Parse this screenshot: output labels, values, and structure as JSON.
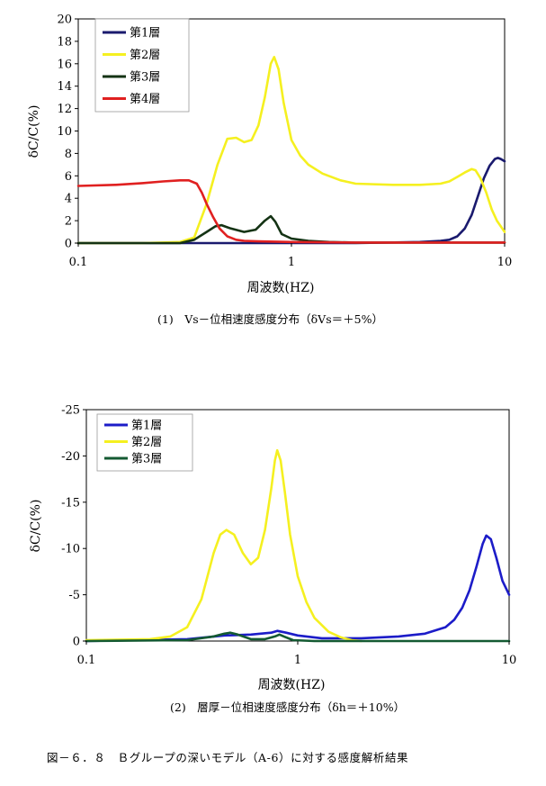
{
  "chart_data": [
    {
      "type": "line",
      "xscale": "log",
      "xlabel": "周波数(HZ)",
      "ylabel": "δC/C(%)",
      "xlim": [
        0.1,
        10
      ],
      "ylim": [
        0,
        20
      ],
      "yticks": [
        0,
        2,
        4,
        6,
        8,
        10,
        12,
        14,
        16,
        18,
        20
      ],
      "xticks": [
        0.1,
        1,
        10
      ],
      "grid": false,
      "legend_position": "top-left",
      "caption": "(1)　Vs－位相速度感度分布（δVs＝＋5%）",
      "series": [
        {
          "name": "第1層",
          "color": "#1a1a6e",
          "x": [
            0.1,
            0.3,
            0.5,
            1,
            2,
            4,
            5,
            5.5,
            6,
            6.5,
            7,
            7.5,
            8,
            8.5,
            9,
            9.3,
            9.6,
            10
          ],
          "y": [
            0,
            0,
            0,
            0,
            0,
            0.1,
            0.2,
            0.3,
            0.6,
            1.3,
            2.5,
            4.2,
            5.8,
            6.9,
            7.5,
            7.6,
            7.5,
            7.3
          ]
        },
        {
          "name": "第2層",
          "color": "#f5f020",
          "x": [
            0.1,
            0.2,
            0.3,
            0.35,
            0.4,
            0.45,
            0.5,
            0.55,
            0.6,
            0.65,
            0.7,
            0.75,
            0.8,
            0.83,
            0.87,
            0.92,
            1,
            1.1,
            1.2,
            1.4,
            1.7,
            2,
            3,
            4,
            5,
            5.5,
            6,
            6.5,
            7,
            7.3,
            7.7,
            8.2,
            8.7,
            9.2,
            10
          ],
          "y": [
            0,
            0,
            0.1,
            0.5,
            3.5,
            7.0,
            9.3,
            9.4,
            9.0,
            9.2,
            10.5,
            13.0,
            16.0,
            16.6,
            15.5,
            12.5,
            9.2,
            7.8,
            7.0,
            6.2,
            5.6,
            5.3,
            5.2,
            5.2,
            5.3,
            5.5,
            5.9,
            6.3,
            6.6,
            6.5,
            5.8,
            4.5,
            3.0,
            2.0,
            1.0
          ]
        },
        {
          "name": "第3層",
          "color": "#143314",
          "x": [
            0.1,
            0.3,
            0.35,
            0.4,
            0.44,
            0.47,
            0.52,
            0.6,
            0.68,
            0.75,
            0.8,
            0.84,
            0.9,
            1,
            1.2,
            1.5,
            2,
            3,
            5,
            10
          ],
          "y": [
            0,
            0,
            0.3,
            1.0,
            1.5,
            1.6,
            1.3,
            1.0,
            1.2,
            2.0,
            2.4,
            1.9,
            0.8,
            0.4,
            0.2,
            0.1,
            0.05,
            0.05,
            0.05,
            0.05
          ]
        },
        {
          "name": "第4層",
          "color": "#e02020",
          "x": [
            0.1,
            0.15,
            0.2,
            0.25,
            0.3,
            0.33,
            0.36,
            0.38,
            0.4,
            0.43,
            0.46,
            0.5,
            0.55,
            0.6,
            0.7,
            1,
            2,
            10
          ],
          "y": [
            5.1,
            5.2,
            5.35,
            5.5,
            5.6,
            5.6,
            5.3,
            4.5,
            3.5,
            2.3,
            1.3,
            0.6,
            0.3,
            0.2,
            0.15,
            0.1,
            0.05,
            0.05
          ]
        }
      ]
    },
    {
      "type": "line",
      "xscale": "log",
      "xlabel": "周波数(HZ)",
      "ylabel": "δC/C(%)",
      "xlim": [
        0.1,
        10
      ],
      "ylim": [
        0,
        -25
      ],
      "yticks": [
        0,
        -5,
        -10,
        -15,
        -20,
        -25
      ],
      "xticks": [
        0.1,
        1,
        10
      ],
      "grid": false,
      "legend_position": "top-left",
      "caption": "(2)　層厚－位相速度感度分布（δh＝＋10%）",
      "series": [
        {
          "name": "第1層",
          "color": "#1c1cc8",
          "x": [
            0.1,
            0.3,
            0.45,
            0.6,
            0.75,
            0.8,
            0.88,
            1,
            1.3,
            2,
            3,
            4,
            5,
            5.5,
            6,
            6.5,
            7,
            7.5,
            7.8,
            8.2,
            8.7,
            9.3,
            10
          ],
          "y": [
            0,
            -0.2,
            -0.6,
            -0.7,
            -0.9,
            -1.1,
            -0.9,
            -0.6,
            -0.3,
            -0.3,
            -0.5,
            -0.8,
            -1.5,
            -2.3,
            -3.6,
            -5.5,
            -8.0,
            -10.5,
            -11.4,
            -11.0,
            -9.0,
            -6.5,
            -5.0
          ]
        },
        {
          "name": "第2層",
          "color": "#f5f020",
          "x": [
            0.1,
            0.2,
            0.25,
            0.3,
            0.35,
            0.4,
            0.43,
            0.46,
            0.5,
            0.55,
            0.6,
            0.65,
            0.7,
            0.75,
            0.78,
            0.8,
            0.83,
            0.87,
            0.92,
            1,
            1.1,
            1.2,
            1.4,
            1.6,
            1.8,
            2
          ],
          "y": [
            -0.1,
            -0.2,
            -0.5,
            -1.5,
            -4.5,
            -9.5,
            -11.5,
            -12.0,
            -11.5,
            -9.5,
            -8.3,
            -9.0,
            -12.0,
            -16.5,
            -19.5,
            -20.6,
            -19.5,
            -16.0,
            -11.5,
            -7.0,
            -4.2,
            -2.5,
            -1.0,
            -0.4,
            -0.1,
            0
          ]
        },
        {
          "name": "第3層",
          "color": "#145a32",
          "x": [
            0.1,
            0.3,
            0.4,
            0.45,
            0.48,
            0.52,
            0.6,
            0.7,
            0.78,
            0.82,
            0.86,
            0.95,
            1.2,
            2,
            10
          ],
          "y": [
            0,
            -0.1,
            -0.5,
            -0.8,
            -0.9,
            -0.7,
            -0.2,
            -0.2,
            -0.5,
            -0.7,
            -0.5,
            -0.1,
            0,
            0,
            0
          ]
        }
      ]
    }
  ],
  "figure_caption": "図－６．８　Ｂグループの深いモデル（A-6）に対する感度解析結果"
}
